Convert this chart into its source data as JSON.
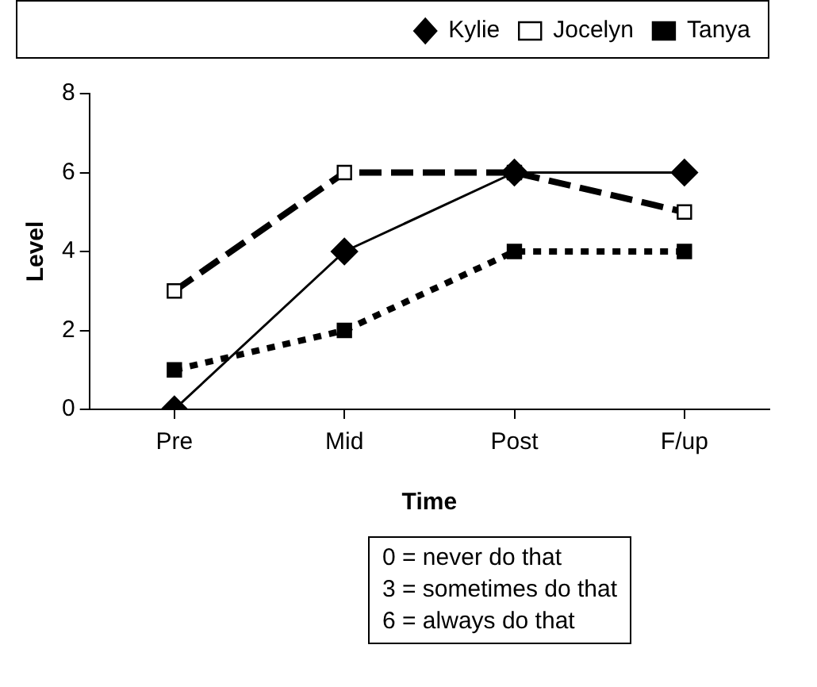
{
  "chart_data": {
    "type": "line",
    "xlabel": "Time",
    "ylabel": "Level",
    "categories": [
      "Pre",
      "Mid",
      "Post",
      "F/up"
    ],
    "series": [
      {
        "name": "Kylie",
        "color": "#000000",
        "values": [
          0,
          4,
          6,
          6
        ],
        "marker": "diamond",
        "line_style": "solid"
      },
      {
        "name": "Jocelyn",
        "color": "#000000",
        "values": [
          3,
          6,
          6,
          5
        ],
        "marker": "square",
        "line_style": "dashed"
      },
      {
        "name": "Tanya",
        "color": "#000000",
        "values": [
          1,
          2,
          4,
          4
        ],
        "marker": "square",
        "line_style": "dotted"
      }
    ],
    "ylim": [
      0,
      8
    ],
    "yticks": [
      0,
      2,
      4,
      6,
      8
    ],
    "grid": false,
    "legend": "top right",
    "annotations": [
      "0 = never do that",
      "3 = sometimes do that",
      "6 = always do that"
    ]
  }
}
